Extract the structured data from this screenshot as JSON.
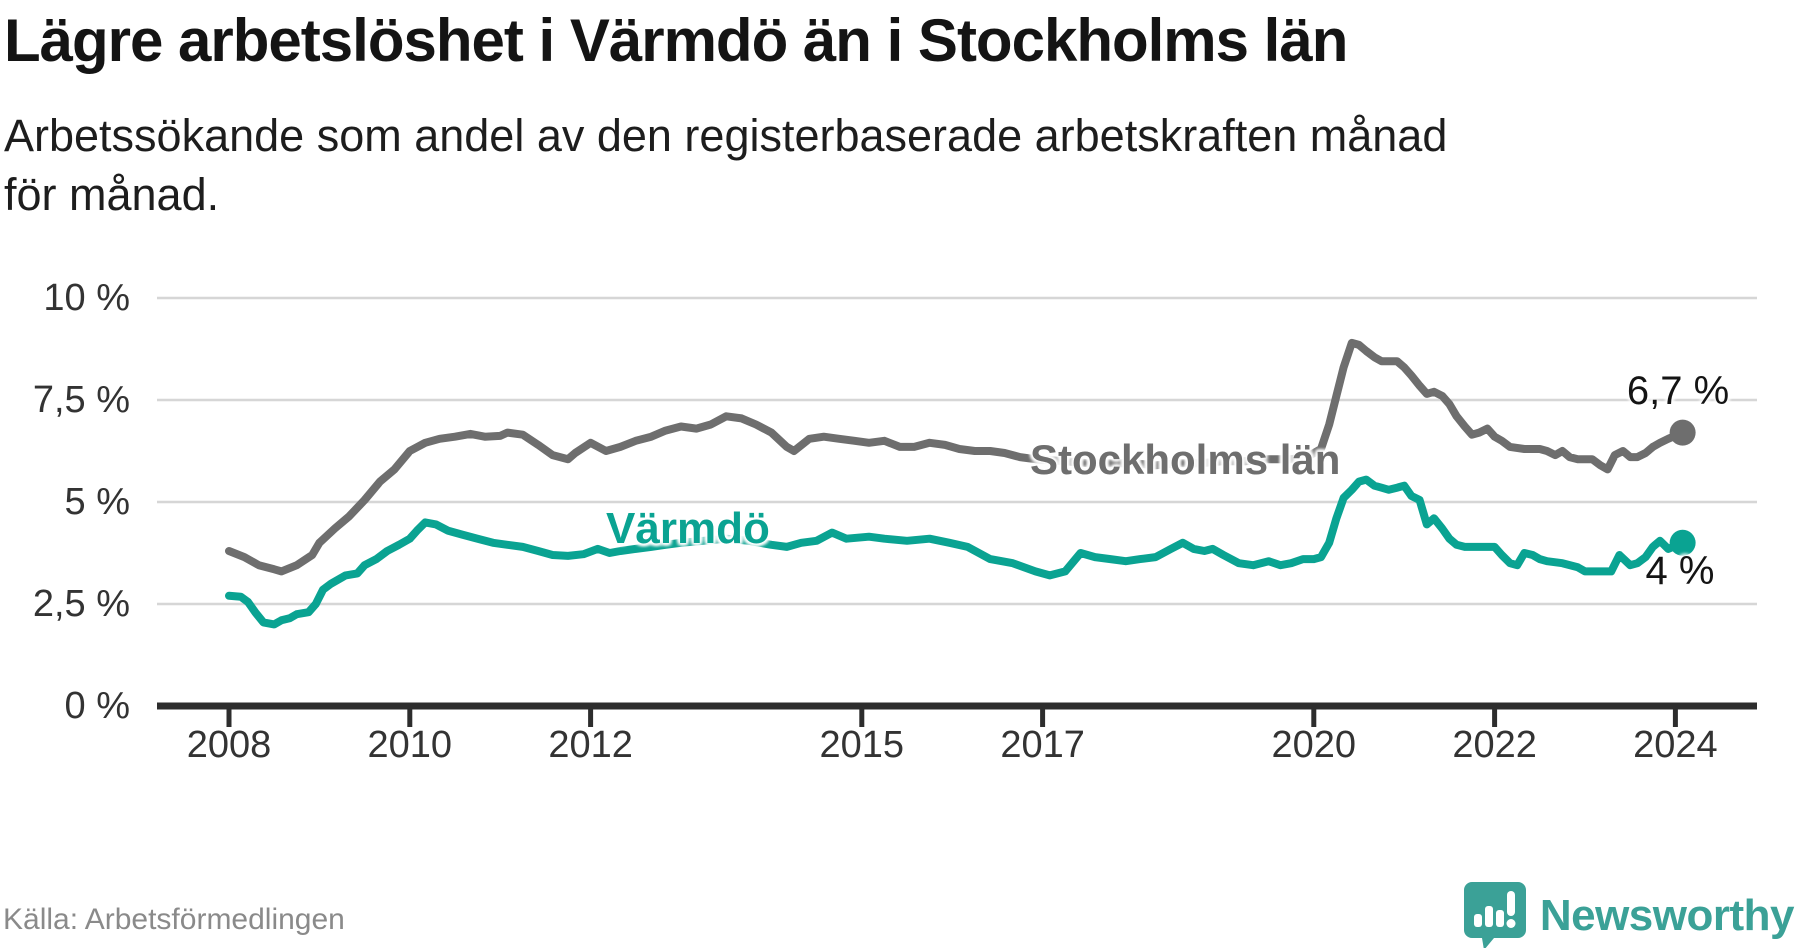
{
  "header": {
    "title": "Lägre arbetslöshet i Värmdö än i Stockholms län",
    "subtitle": "Arbetssökande som andel av den registerbaserade arbetskraften månad för månad."
  },
  "footer": {
    "source": "Källa: Arbetsförmedlingen",
    "brand": "Newsworthy",
    "brand_color": "#3ba197"
  },
  "chart_data": {
    "type": "line",
    "title": "Lägre arbetslöshet i Värmdö än i Stockholms län",
    "subtitle": "Arbetssökande som andel av den registerbaserade arbetskraften månad för månad.",
    "unit": "%",
    "grid": true,
    "x_range": [
      2007.9,
      2024.9
    ],
    "ylim": [
      0,
      10
    ],
    "x_axis": {
      "ticks": [
        {
          "value": 2008,
          "label": "2008"
        },
        {
          "value": 2010,
          "label": "2010"
        },
        {
          "value": 2012,
          "label": "2012"
        },
        {
          "value": 2015,
          "label": "2015"
        },
        {
          "value": 2017,
          "label": "2017"
        },
        {
          "value": 2020,
          "label": "2020"
        },
        {
          "value": 2022,
          "label": "2022"
        },
        {
          "value": 2024,
          "label": "2024"
        }
      ]
    },
    "y_axis": {
      "ticks": [
        {
          "value": 10,
          "label": "10 %"
        },
        {
          "value": 7.5,
          "label": "7,5 %"
        },
        {
          "value": 5,
          "label": "5 %"
        },
        {
          "value": 2.5,
          "label": "2,5 %"
        },
        {
          "value": 0,
          "label": "0 %"
        }
      ]
    },
    "gridline_color": "#d6d6d6",
    "axis_color": "#2d2d2d",
    "series": [
      {
        "name": "Stockholms län",
        "color": "#6e6e6e",
        "end_label": "6,7 %",
        "end_value": 6.7,
        "points": [
          [
            2008.0,
            3.8
          ],
          [
            2008.17,
            3.65
          ],
          [
            2008.33,
            3.45
          ],
          [
            2008.5,
            3.35
          ],
          [
            2008.58,
            3.3
          ],
          [
            2008.75,
            3.45
          ],
          [
            2008.92,
            3.7
          ],
          [
            2009.0,
            4.0
          ],
          [
            2009.17,
            4.35
          ],
          [
            2009.33,
            4.65
          ],
          [
            2009.5,
            5.05
          ],
          [
            2009.67,
            5.5
          ],
          [
            2009.83,
            5.8
          ],
          [
            2010.0,
            6.25
          ],
          [
            2010.17,
            6.45
          ],
          [
            2010.33,
            6.55
          ],
          [
            2010.5,
            6.6
          ],
          [
            2010.67,
            6.67
          ],
          [
            2010.83,
            6.6
          ],
          [
            2011.0,
            6.62
          ],
          [
            2011.08,
            6.7
          ],
          [
            2011.25,
            6.65
          ],
          [
            2011.42,
            6.4
          ],
          [
            2011.58,
            6.15
          ],
          [
            2011.75,
            6.05
          ],
          [
            2011.83,
            6.2
          ],
          [
            2012.0,
            6.45
          ],
          [
            2012.17,
            6.25
          ],
          [
            2012.33,
            6.35
          ],
          [
            2012.5,
            6.5
          ],
          [
            2012.67,
            6.6
          ],
          [
            2012.83,
            6.75
          ],
          [
            2013.0,
            6.85
          ],
          [
            2013.17,
            6.8
          ],
          [
            2013.33,
            6.9
          ],
          [
            2013.5,
            7.1
          ],
          [
            2013.67,
            7.05
          ],
          [
            2013.83,
            6.9
          ],
          [
            2014.0,
            6.7
          ],
          [
            2014.17,
            6.35
          ],
          [
            2014.25,
            6.25
          ],
          [
            2014.42,
            6.55
          ],
          [
            2014.58,
            6.6
          ],
          [
            2014.75,
            6.55
          ],
          [
            2014.92,
            6.5
          ],
          [
            2015.08,
            6.45
          ],
          [
            2015.25,
            6.5
          ],
          [
            2015.42,
            6.35
          ],
          [
            2015.58,
            6.35
          ],
          [
            2015.75,
            6.45
          ],
          [
            2015.92,
            6.4
          ],
          [
            2016.08,
            6.3
          ],
          [
            2016.25,
            6.25
          ],
          [
            2016.42,
            6.25
          ],
          [
            2016.58,
            6.2
          ],
          [
            2016.75,
            6.1
          ],
          [
            2016.92,
            6.05
          ],
          [
            2017.25,
            6.0
          ],
          [
            2017.5,
            5.95
          ],
          [
            2017.75,
            5.95
          ],
          [
            2018.0,
            5.95
          ],
          [
            2018.25,
            5.9
          ],
          [
            2018.5,
            5.95
          ],
          [
            2018.75,
            5.95
          ],
          [
            2019.0,
            6.0
          ],
          [
            2019.25,
            6.0
          ],
          [
            2019.5,
            6.05
          ],
          [
            2019.75,
            6.05
          ],
          [
            2019.92,
            6.1
          ],
          [
            2020.08,
            6.3
          ],
          [
            2020.17,
            6.9
          ],
          [
            2020.25,
            7.6
          ],
          [
            2020.33,
            8.3
          ],
          [
            2020.42,
            8.9
          ],
          [
            2020.5,
            8.85
          ],
          [
            2020.58,
            8.7
          ],
          [
            2020.67,
            8.55
          ],
          [
            2020.75,
            8.45
          ],
          [
            2020.92,
            8.45
          ],
          [
            2021.0,
            8.3
          ],
          [
            2021.08,
            8.1
          ],
          [
            2021.17,
            7.85
          ],
          [
            2021.25,
            7.65
          ],
          [
            2021.33,
            7.7
          ],
          [
            2021.42,
            7.6
          ],
          [
            2021.5,
            7.4
          ],
          [
            2021.58,
            7.1
          ],
          [
            2021.67,
            6.85
          ],
          [
            2021.75,
            6.65
          ],
          [
            2021.83,
            6.7
          ],
          [
            2021.92,
            6.8
          ],
          [
            2022.0,
            6.6
          ],
          [
            2022.08,
            6.5
          ],
          [
            2022.17,
            6.35
          ],
          [
            2022.33,
            6.3
          ],
          [
            2022.5,
            6.3
          ],
          [
            2022.58,
            6.25
          ],
          [
            2022.67,
            6.15
          ],
          [
            2022.75,
            6.25
          ],
          [
            2022.83,
            6.1
          ],
          [
            2022.92,
            6.05
          ],
          [
            2023.08,
            6.05
          ],
          [
            2023.17,
            5.9
          ],
          [
            2023.25,
            5.8
          ],
          [
            2023.33,
            6.15
          ],
          [
            2023.42,
            6.25
          ],
          [
            2023.5,
            6.1
          ],
          [
            2023.58,
            6.1
          ],
          [
            2023.67,
            6.2
          ],
          [
            2023.75,
            6.35
          ],
          [
            2023.83,
            6.45
          ],
          [
            2023.92,
            6.55
          ],
          [
            2024.08,
            6.7
          ]
        ]
      },
      {
        "name": "Värmdö",
        "color": "#0aa392",
        "end_label": "4 %",
        "end_value": 4.0,
        "points": [
          [
            2008.0,
            2.7
          ],
          [
            2008.13,
            2.68
          ],
          [
            2008.21,
            2.55
          ],
          [
            2008.29,
            2.3
          ],
          [
            2008.38,
            2.05
          ],
          [
            2008.5,
            2.0
          ],
          [
            2008.58,
            2.1
          ],
          [
            2008.67,
            2.15
          ],
          [
            2008.75,
            2.25
          ],
          [
            2008.88,
            2.3
          ],
          [
            2008.96,
            2.5
          ],
          [
            2009.04,
            2.85
          ],
          [
            2009.13,
            3.0
          ],
          [
            2009.21,
            3.1
          ],
          [
            2009.29,
            3.2
          ],
          [
            2009.42,
            3.25
          ],
          [
            2009.5,
            3.45
          ],
          [
            2009.63,
            3.6
          ],
          [
            2009.75,
            3.8
          ],
          [
            2009.88,
            3.95
          ],
          [
            2010.0,
            4.1
          ],
          [
            2010.08,
            4.3
          ],
          [
            2010.17,
            4.5
          ],
          [
            2010.29,
            4.45
          ],
          [
            2010.42,
            4.3
          ],
          [
            2010.58,
            4.2
          ],
          [
            2010.75,
            4.1
          ],
          [
            2010.92,
            4.0
          ],
          [
            2011.08,
            3.95
          ],
          [
            2011.25,
            3.9
          ],
          [
            2011.42,
            3.8
          ],
          [
            2011.58,
            3.7
          ],
          [
            2011.75,
            3.68
          ],
          [
            2011.92,
            3.72
          ],
          [
            2012.08,
            3.85
          ],
          [
            2012.21,
            3.75
          ],
          [
            2012.33,
            3.8
          ],
          [
            2012.5,
            3.85
          ],
          [
            2012.67,
            3.9
          ],
          [
            2012.83,
            3.95
          ],
          [
            2013.0,
            4.0
          ],
          [
            2013.25,
            4.05
          ],
          [
            2013.5,
            4.1
          ],
          [
            2013.75,
            4.05
          ],
          [
            2014.0,
            3.95
          ],
          [
            2014.17,
            3.9
          ],
          [
            2014.33,
            4.0
          ],
          [
            2014.5,
            4.05
          ],
          [
            2014.67,
            4.25
          ],
          [
            2014.83,
            4.1
          ],
          [
            2015.08,
            4.15
          ],
          [
            2015.25,
            4.1
          ],
          [
            2015.5,
            4.05
          ],
          [
            2015.75,
            4.1
          ],
          [
            2015.97,
            4.0
          ],
          [
            2016.17,
            3.9
          ],
          [
            2016.42,
            3.6
          ],
          [
            2016.67,
            3.5
          ],
          [
            2016.92,
            3.3
          ],
          [
            2017.08,
            3.2
          ],
          [
            2017.25,
            3.3
          ],
          [
            2017.42,
            3.75
          ],
          [
            2017.58,
            3.65
          ],
          [
            2017.75,
            3.6
          ],
          [
            2017.92,
            3.55
          ],
          [
            2018.08,
            3.6
          ],
          [
            2018.25,
            3.65
          ],
          [
            2018.42,
            3.85
          ],
          [
            2018.55,
            4.0
          ],
          [
            2018.67,
            3.85
          ],
          [
            2018.79,
            3.8
          ],
          [
            2018.88,
            3.85
          ],
          [
            2019.0,
            3.7
          ],
          [
            2019.17,
            3.5
          ],
          [
            2019.33,
            3.45
          ],
          [
            2019.5,
            3.55
          ],
          [
            2019.63,
            3.45
          ],
          [
            2019.75,
            3.5
          ],
          [
            2019.88,
            3.6
          ],
          [
            2020.0,
            3.6
          ],
          [
            2020.08,
            3.65
          ],
          [
            2020.17,
            4.0
          ],
          [
            2020.25,
            4.6
          ],
          [
            2020.33,
            5.1
          ],
          [
            2020.42,
            5.3
          ],
          [
            2020.5,
            5.5
          ],
          [
            2020.58,
            5.55
          ],
          [
            2020.67,
            5.4
          ],
          [
            2020.75,
            5.35
          ],
          [
            2020.83,
            5.3
          ],
          [
            2020.92,
            5.35
          ],
          [
            2021.0,
            5.4
          ],
          [
            2021.08,
            5.15
          ],
          [
            2021.17,
            5.05
          ],
          [
            2021.25,
            4.45
          ],
          [
            2021.33,
            4.6
          ],
          [
            2021.42,
            4.35
          ],
          [
            2021.5,
            4.1
          ],
          [
            2021.58,
            3.95
          ],
          [
            2021.67,
            3.9
          ],
          [
            2021.83,
            3.9
          ],
          [
            2022.0,
            3.9
          ],
          [
            2022.08,
            3.7
          ],
          [
            2022.17,
            3.5
          ],
          [
            2022.25,
            3.45
          ],
          [
            2022.33,
            3.75
          ],
          [
            2022.42,
            3.7
          ],
          [
            2022.5,
            3.6
          ],
          [
            2022.58,
            3.55
          ],
          [
            2022.75,
            3.5
          ],
          [
            2022.92,
            3.4
          ],
          [
            2023.0,
            3.3
          ],
          [
            2023.17,
            3.3
          ],
          [
            2023.29,
            3.3
          ],
          [
            2023.38,
            3.7
          ],
          [
            2023.5,
            3.45
          ],
          [
            2023.58,
            3.5
          ],
          [
            2023.67,
            3.65
          ],
          [
            2023.75,
            3.9
          ],
          [
            2023.83,
            4.05
          ],
          [
            2023.92,
            3.85
          ],
          [
            2024.08,
            4.0
          ]
        ]
      }
    ],
    "series_inline_labels": [
      {
        "text": "Stockholms län",
        "color": "#6e6e6e"
      },
      {
        "text": "Värmdö",
        "color": "#0aa392"
      }
    ]
  }
}
